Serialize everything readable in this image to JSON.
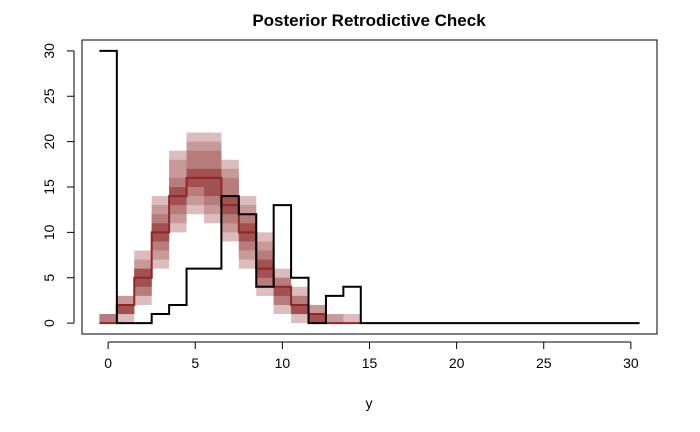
{
  "chart_data": {
    "type": "step",
    "title": "Posterior Retrodictive Check",
    "xlabel": "y",
    "ylabel": "",
    "xlim": [
      -1.5,
      31.5
    ],
    "ylim": [
      -1.2,
      31.2
    ],
    "xticks": [
      0,
      5,
      10,
      15,
      20,
      25,
      30
    ],
    "yticks": [
      0,
      5,
      10,
      15,
      20,
      25,
      30
    ],
    "grid": false,
    "legend": "none",
    "colors": {
      "observed": "#000000",
      "median": "#8f2727",
      "band_levels": [
        "#dcbcbc",
        "#c79999",
        "#b97c7c",
        "#a25050"
      ]
    },
    "band_bins": [
      0,
      1,
      2,
      3,
      4,
      5,
      6,
      7,
      8,
      9,
      10,
      11,
      12,
      13,
      14
    ],
    "observed": {
      "bins": [
        0,
        1,
        2,
        3,
        4,
        5,
        6,
        7,
        8,
        9,
        10,
        11,
        12,
        13,
        14,
        15,
        16,
        17,
        18,
        19,
        20,
        21,
        22,
        23,
        24,
        25,
        26,
        27,
        28,
        29,
        30
      ],
      "values": [
        30,
        0,
        0,
        1,
        2,
        6,
        6,
        14,
        12,
        4,
        13,
        5,
        0,
        3,
        4,
        0,
        0,
        0,
        0,
        0,
        0,
        0,
        0,
        0,
        0,
        0,
        0,
        0,
        0,
        0,
        0
      ]
    },
    "posterior_median": [
      0,
      2,
      5,
      10,
      14,
      16,
      16,
      13,
      10,
      6,
      4,
      2,
      1,
      0,
      0
    ],
    "quantile_bands": [
      {
        "lower": [
          0,
          0,
          2,
          6,
          10,
          12,
          11,
          9,
          6,
          3,
          1,
          0,
          0,
          0,
          0
        ],
        "upper": [
          1,
          3,
          8,
          14,
          19,
          21,
          21,
          18,
          14,
          10,
          6,
          4,
          2,
          1,
          1
        ]
      },
      {
        "lower": [
          0,
          1,
          3,
          7,
          11,
          13,
          12,
          10,
          7,
          4,
          2,
          1,
          0,
          0,
          0
        ],
        "upper": [
          1,
          3,
          7,
          13,
          18,
          20,
          20,
          17,
          13,
          9,
          5,
          3,
          2,
          1,
          0
        ]
      },
      {
        "lower": [
          0,
          1,
          3,
          8,
          12,
          14,
          13,
          11,
          8,
          4,
          2,
          1,
          0,
          0,
          0
        ],
        "upper": [
          1,
          2,
          6,
          12,
          16,
          19,
          19,
          16,
          12,
          8,
          5,
          3,
          1,
          0,
          0
        ]
      },
      {
        "lower": [
          0,
          1,
          4,
          9,
          13,
          15,
          14,
          12,
          9,
          5,
          3,
          1,
          0,
          0,
          0
        ],
        "upper": [
          0,
          2,
          6,
          11,
          15,
          17,
          17,
          14,
          11,
          7,
          4,
          2,
          1,
          0,
          0
        ]
      }
    ]
  }
}
